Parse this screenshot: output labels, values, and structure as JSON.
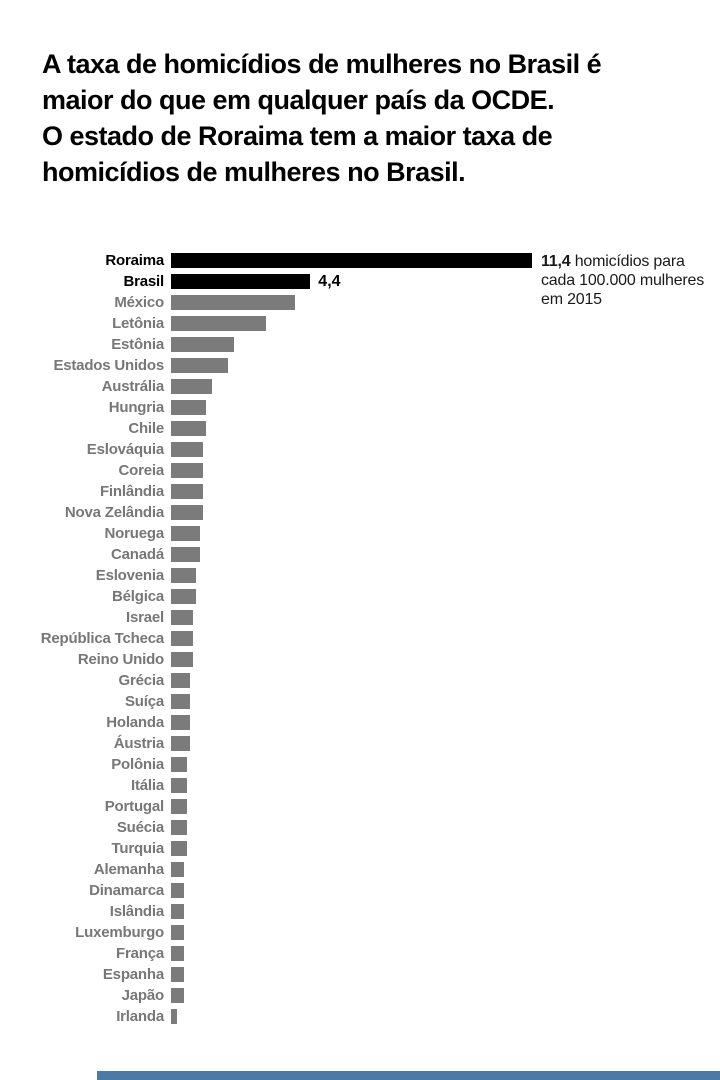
{
  "title": {
    "line1": "A taxa de homicídios de mulheres no Brasil é",
    "line2": "maior do que em qualquer país da OCDE.",
    "line3": "O estado de Roraima tem a maior taxa de",
    "line4": "homicídios de mulheres no Brasil."
  },
  "annotation": {
    "value": "11,4",
    "line1_rest": " homicídios para",
    "line2": "cada 100.000 mulheres",
    "line3": "em 2015"
  },
  "colors": {
    "highlight_bar": "#000000",
    "default_bar": "#7b7b7b",
    "highlight_label": "#000000",
    "default_label": "#777777",
    "annotation_text": "#1a1a1a",
    "footer_bar": "#4a7aa5"
  },
  "chart_data": {
    "type": "bar",
    "orientation": "horizontal",
    "title": "A taxa de homicídios de mulheres no Brasil é maior do que em qualquer país da OCDE. O estado de Roraima tem a maior taxa de homicídios de mulheres no Brasil.",
    "xlabel": "homicídios para cada 100.000 mulheres em 2015",
    "xlim": [
      0,
      11.4
    ],
    "grid": false,
    "rows": [
      {
        "label": "Roraima",
        "value": 11.4,
        "highlight": true
      },
      {
        "label": "Brasil",
        "value": 4.4,
        "highlight": true,
        "value_label": "4,4"
      },
      {
        "label": "México",
        "value": 3.9
      },
      {
        "label": "Letônia",
        "value": 3.0
      },
      {
        "label": "Estônia",
        "value": 2.0
      },
      {
        "label": "Estados Unidos",
        "value": 1.8
      },
      {
        "label": "Austrália",
        "value": 1.3
      },
      {
        "label": "Hungria",
        "value": 1.1
      },
      {
        "label": "Chile",
        "value": 1.1
      },
      {
        "label": "Eslováquia",
        "value": 1.0
      },
      {
        "label": "Coreia",
        "value": 1.0
      },
      {
        "label": "Finlândia",
        "value": 1.0
      },
      {
        "label": "Nova Zelândia",
        "value": 1.0
      },
      {
        "label": "Noruega",
        "value": 0.9
      },
      {
        "label": "Canadá",
        "value": 0.9
      },
      {
        "label": "Eslovenia",
        "value": 0.8
      },
      {
        "label": "Bélgica",
        "value": 0.8
      },
      {
        "label": "Israel",
        "value": 0.7
      },
      {
        "label": "República Tcheca",
        "value": 0.7
      },
      {
        "label": "Reino Unido",
        "value": 0.7
      },
      {
        "label": "Grécia",
        "value": 0.6
      },
      {
        "label": "Suíça",
        "value": 0.6
      },
      {
        "label": "Holanda",
        "value": 0.6
      },
      {
        "label": "Áustria",
        "value": 0.6
      },
      {
        "label": "Polônia",
        "value": 0.5
      },
      {
        "label": "Itália",
        "value": 0.5
      },
      {
        "label": "Portugal",
        "value": 0.5
      },
      {
        "label": "Suécia",
        "value": 0.5
      },
      {
        "label": "Turquia",
        "value": 0.5
      },
      {
        "label": "Alemanha",
        "value": 0.4
      },
      {
        "label": "Dinamarca",
        "value": 0.4
      },
      {
        "label": "Islândia",
        "value": 0.4
      },
      {
        "label": "Luxemburgo",
        "value": 0.4
      },
      {
        "label": "França",
        "value": 0.4
      },
      {
        "label": "Espanha",
        "value": 0.4
      },
      {
        "label": "Japão",
        "value": 0.4
      },
      {
        "label": "Irlanda",
        "value": 0.2
      }
    ]
  }
}
